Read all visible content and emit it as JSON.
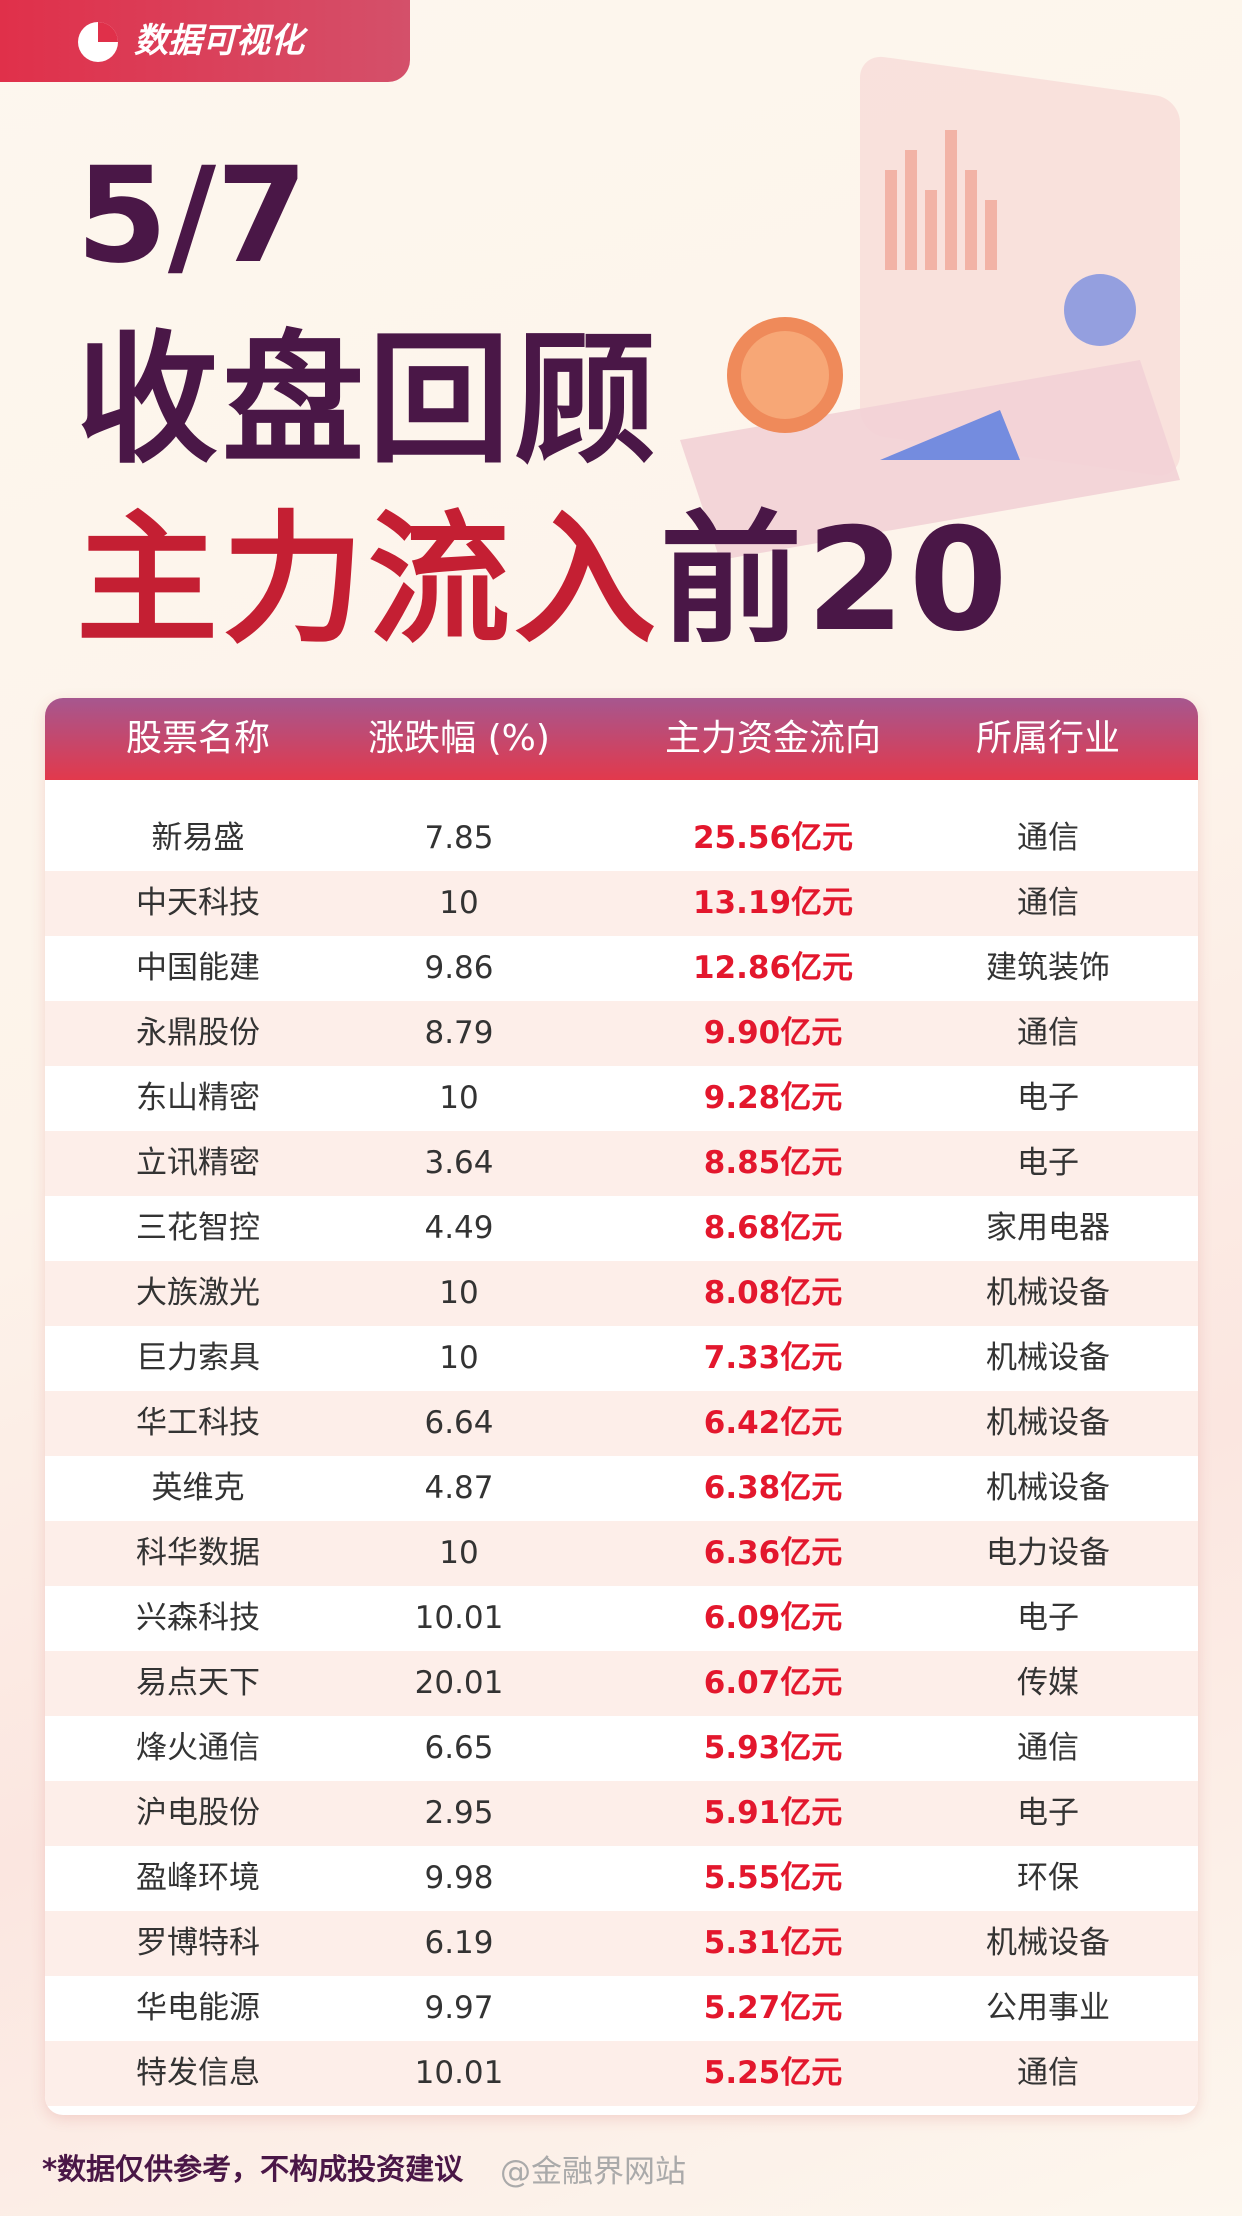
{
  "header": {
    "tag": "数据可视化",
    "date": "5/7",
    "title": "收盘回顾",
    "subtitle": [
      "主力流入",
      "前20"
    ]
  },
  "table": {
    "columns": [
      "股票名称",
      "涨跌幅 (%)",
      "主力资金流向",
      "所属行业"
    ],
    "rows": [
      [
        "新易盛",
        "7.85",
        "25.56亿元",
        "通信"
      ],
      [
        "中天科技",
        "10",
        "13.19亿元",
        "通信"
      ],
      [
        "中国能建",
        "9.86",
        "12.86亿元",
        "建筑装饰"
      ],
      [
        "永鼎股份",
        "8.79",
        "9.90亿元",
        "通信"
      ],
      [
        "东山精密",
        "10",
        "9.28亿元",
        "电子"
      ],
      [
        "立讯精密",
        "3.64",
        "8.85亿元",
        "电子"
      ],
      [
        "三花智控",
        "4.49",
        "8.68亿元",
        "家用电器"
      ],
      [
        "大族激光",
        "10",
        "8.08亿元",
        "机械设备"
      ],
      [
        "巨力索具",
        "10",
        "7.33亿元",
        "机械设备"
      ],
      [
        "华工科技",
        "6.64",
        "6.42亿元",
        "机械设备"
      ],
      [
        "英维克",
        "4.87",
        "6.38亿元",
        "机械设备"
      ],
      [
        "科华数据",
        "10",
        "6.36亿元",
        "电力设备"
      ],
      [
        "兴森科技",
        "10.01",
        "6.09亿元",
        "电子"
      ],
      [
        "易点天下",
        "20.01",
        "6.07亿元",
        "传媒"
      ],
      [
        "烽火通信",
        "6.65",
        "5.93亿元",
        "通信"
      ],
      [
        "沪电股份",
        "2.95",
        "5.91亿元",
        "电子"
      ],
      [
        "盈峰环境",
        "9.98",
        "5.55亿元",
        "环保"
      ],
      [
        "罗博特科",
        "6.19",
        "5.31亿元",
        "机械设备"
      ],
      [
        "华电能源",
        "9.97",
        "5.27亿元",
        "公用事业"
      ],
      [
        "特发信息",
        "10.01",
        "5.25亿元",
        "通信"
      ]
    ]
  },
  "footer": {
    "note": "*数据仅供参考，不构成投资建议",
    "watermark": "@金融界网站"
  }
}
